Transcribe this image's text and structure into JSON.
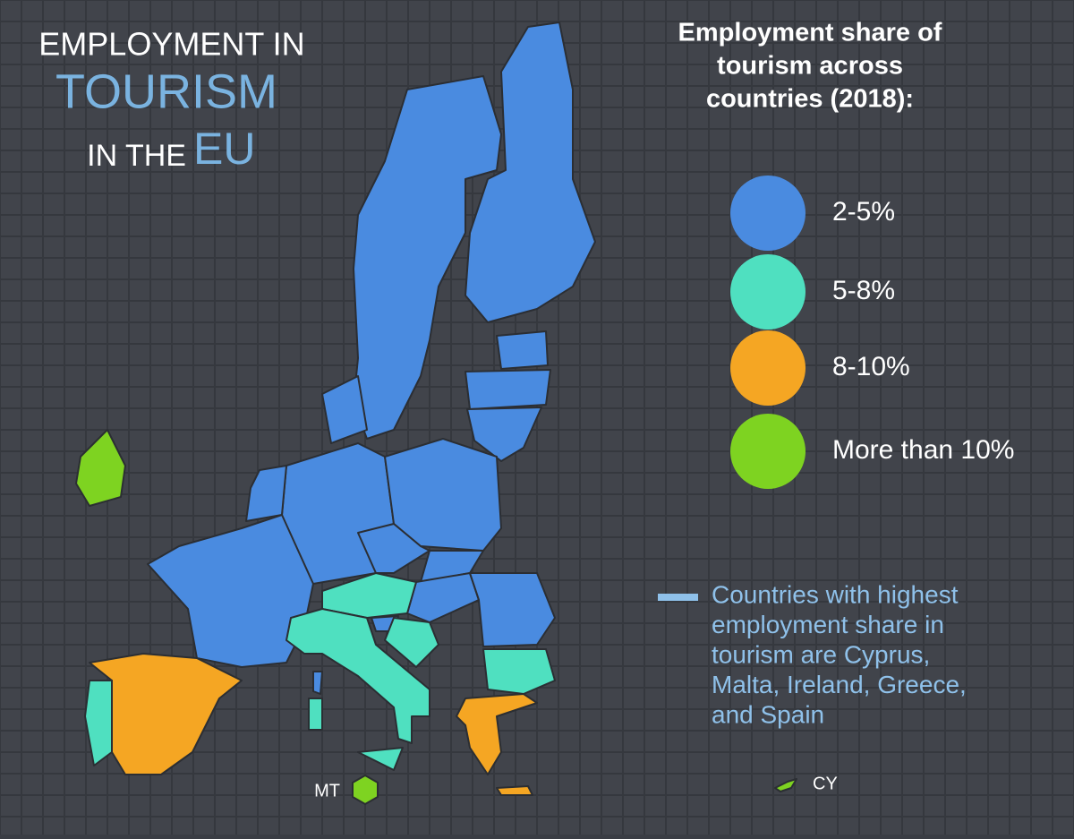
{
  "title": {
    "line1": "EMPLOYMENT IN",
    "line2": "TOURISM",
    "line3a": "IN THE",
    "line3b": "EU"
  },
  "legend": {
    "title_lines": [
      "Employment share of",
      "tourism across",
      "countries (2018):"
    ],
    "items": [
      {
        "label": "2-5%",
        "color": "#4a8be0"
      },
      {
        "label": "5-8%",
        "color": "#4fe0c0"
      },
      {
        "label": "8-10%",
        "color": "#f5a623"
      },
      {
        "label": "More than 10%",
        "color": "#7ed321"
      }
    ]
  },
  "note": {
    "lines": [
      "Countries with highest",
      "employment share in",
      "tourism are Cyprus,",
      "Malta, Ireland, Greece,",
      "and Spain"
    ],
    "color": "#8fc1ea"
  },
  "labels": {
    "malta": "MT",
    "cyprus": "CY"
  }
}
